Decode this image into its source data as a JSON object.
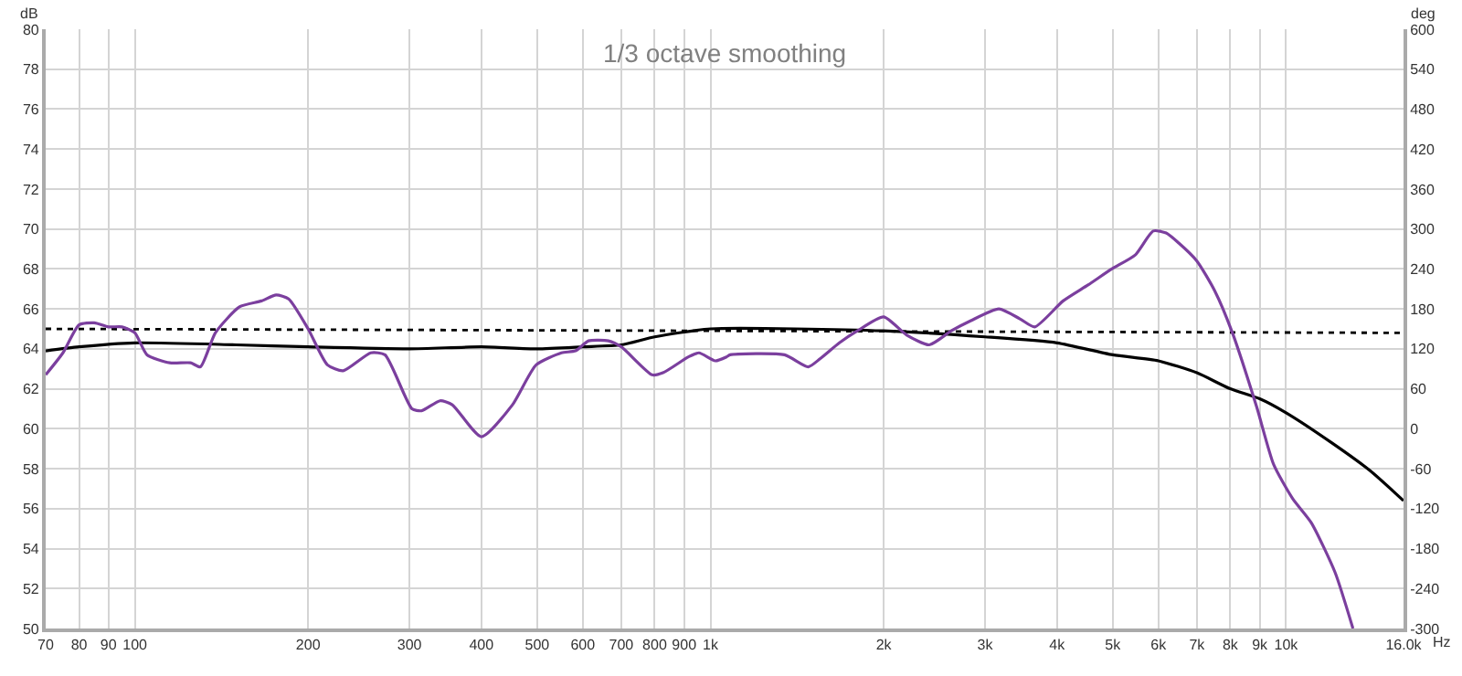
{
  "chart_data": {
    "type": "line",
    "title": "1/3 octave smoothing",
    "xlabel": "Hz",
    "ylabel": "dB",
    "y2label": "deg",
    "log": "x",
    "grid": true,
    "marker": "none",
    "xlim": [
      70,
      16000
    ],
    "xticks": [
      70,
      80,
      90,
      100,
      200,
      300,
      400,
      500,
      600,
      700,
      800,
      900,
      {
        "value": 1000,
        "label": "1k"
      },
      {
        "value": 2000,
        "label": "2k"
      },
      {
        "value": 3000,
        "label": "3k"
      },
      {
        "value": 4000,
        "label": "4k"
      },
      {
        "value": 5000,
        "label": "5k"
      },
      {
        "value": 6000,
        "label": "6k"
      },
      {
        "value": 7000,
        "label": "7k"
      },
      {
        "value": 8000,
        "label": "8k"
      },
      {
        "value": 9000,
        "label": "9k"
      },
      {
        "value": 10000,
        "label": "10k"
      },
      {
        "value": 16000,
        "label": "16.0k"
      }
    ],
    "ylim": [
      50,
      80
    ],
    "yticks": [
      50,
      52,
      54,
      56,
      58,
      60,
      62,
      64,
      66,
      68,
      70,
      72,
      74,
      76,
      78,
      80
    ],
    "y2lim": [
      -300,
      600
    ],
    "y2ticks": [
      -300,
      -240,
      -180,
      -120,
      -60,
      0,
      60,
      120,
      180,
      240,
      300,
      360,
      420,
      480,
      540,
      600
    ],
    "series": [
      {
        "color": "#000000",
        "line_style": "dotted",
        "x": [
          70,
          16000
        ],
        "values": [
          65.0,
          64.8
        ]
      },
      {
        "color": "#000000",
        "line_style": "solid",
        "x": [
          70,
          80,
          100,
          150,
          200,
          300,
          400,
          500,
          600,
          700,
          800,
          1000,
          2000,
          3000,
          4000,
          5000,
          6000,
          7000,
          8000,
          9000,
          10000,
          12000,
          14000,
          16000
        ],
        "values": [
          63.9,
          64.1,
          64.3,
          64.2,
          64.1,
          64.0,
          64.1,
          64.0,
          64.1,
          64.2,
          64.6,
          65.0,
          64.9,
          64.6,
          64.3,
          63.7,
          63.4,
          62.8,
          62.0,
          61.5,
          60.8,
          59.3,
          57.9,
          56.4
        ]
      },
      {
        "color": "#7b3f9e",
        "line_style": "solid",
        "x": [
          70,
          75,
          80,
          85,
          90,
          95,
          100,
          105,
          115,
          125,
          130,
          138,
          152,
          166,
          176,
          185,
          200,
          216,
          230,
          257,
          272,
          303,
          315,
          339,
          356,
          400,
          453,
          498,
          551,
          583,
          614,
          665,
          700,
          792,
          827,
          916,
          955,
          1020,
          1067,
          1082,
          1345,
          1479,
          1550,
          1675,
          1800,
          2000,
          2190,
          2400,
          2620,
          2830,
          3170,
          3450,
          3660,
          4100,
          4530,
          4980,
          5470,
          5880,
          6190,
          6510,
          7000,
          7520,
          8070,
          8890,
          9520,
          10270,
          11060,
          12170,
          13070
        ],
        "values": [
          62.7,
          63.8,
          65.2,
          65.3,
          65.1,
          65.1,
          64.8,
          63.7,
          63.3,
          63.3,
          63.1,
          64.8,
          66.1,
          66.4,
          66.7,
          66.5,
          65.0,
          63.2,
          62.9,
          63.8,
          63.7,
          61.0,
          60.9,
          61.4,
          61.2,
          59.6,
          61.2,
          63.2,
          63.8,
          63.9,
          64.4,
          64.4,
          64.1,
          62.7,
          62.8,
          63.6,
          63.8,
          63.4,
          63.6,
          63.7,
          63.7,
          63.1,
          63.5,
          64.3,
          64.9,
          65.6,
          64.7,
          64.2,
          64.9,
          65.4,
          66.0,
          65.5,
          65.1,
          66.4,
          67.2,
          68.0,
          68.7,
          69.9,
          69.8,
          69.3,
          68.4,
          66.9,
          64.8,
          61.1,
          58.2,
          56.5,
          55.3,
          52.8,
          50.0
        ]
      }
    ]
  }
}
